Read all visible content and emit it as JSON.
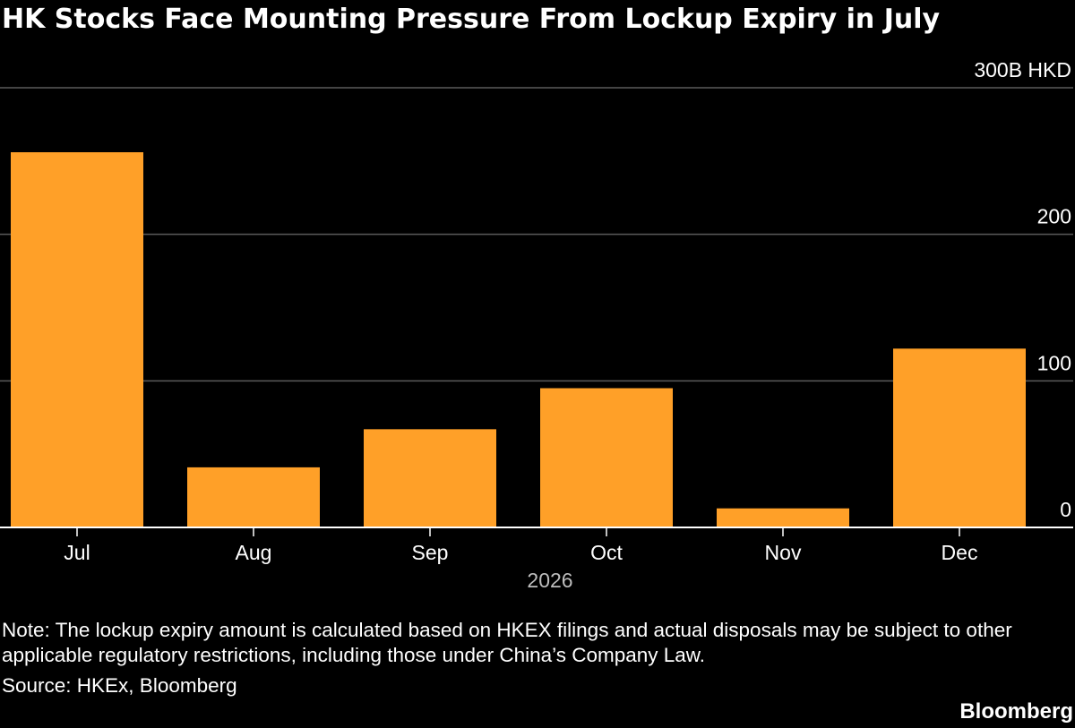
{
  "header": {
    "title": "HK Stocks Face Mounting Pressure From Lockup Expiry in July"
  },
  "chart_data": {
    "type": "bar",
    "categories": [
      "Jul",
      "Aug",
      "Sep",
      "Oct",
      "Nov",
      "Dec"
    ],
    "values": [
      256,
      41,
      67,
      95,
      13,
      122
    ],
    "ylim": [
      0,
      300
    ],
    "yticks": [
      {
        "value": 300,
        "label": "300B HKD"
      },
      {
        "value": 200,
        "label": "200"
      },
      {
        "value": 100,
        "label": "100"
      },
      {
        "value": 0,
        "label": "0"
      }
    ],
    "xlabel": "2026",
    "ylabel": "",
    "unit": "B HKD",
    "grid": true,
    "y_axis_side": "right",
    "colors": {
      "bar": "#ffa028",
      "gridline": "#5a5a5a",
      "axis": "#ffffff",
      "year_label": "#bdbdbd",
      "background": "#000000"
    }
  },
  "footer": {
    "note": "Note: The lockup expiry amount is calculated based on HKEX filings and actual disposals may be subject to other applicable regulatory restrictions, including those under China’s Company Law.",
    "source": "Source: HKEx, Bloomberg",
    "brand": "Bloomberg"
  }
}
